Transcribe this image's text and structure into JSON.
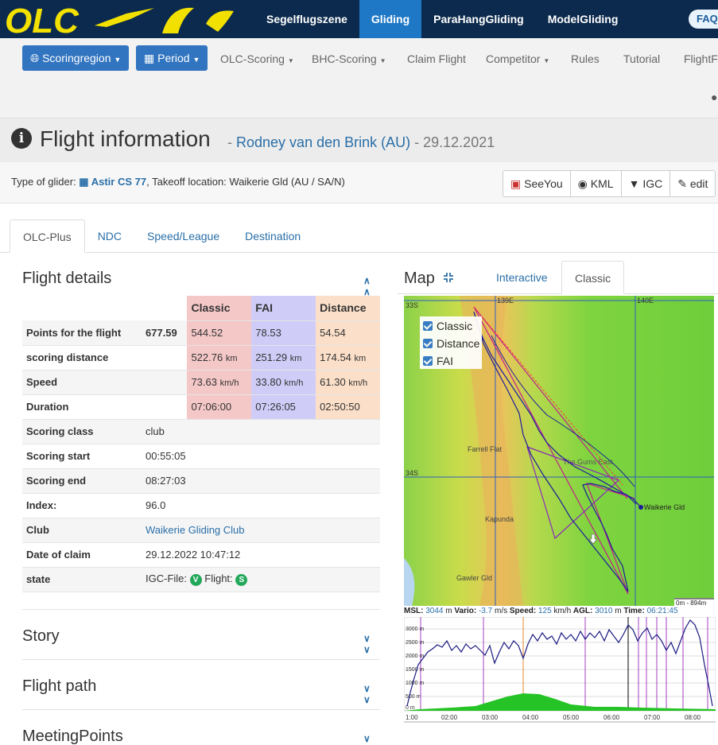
{
  "topnav": {
    "items": [
      "Segelflugszene",
      "Gliding",
      "ParaHangGliding",
      "ModelGliding"
    ],
    "active": "Gliding",
    "faq": "FAQ",
    "logo_text": "OLC"
  },
  "subnav": {
    "scoringregion": "Scoringregion",
    "period": "Period",
    "items": [
      "OLC-Scoring",
      "BHC-Scoring",
      "Claim Flight",
      "Competitor",
      "Rules",
      "Tutorial",
      "FlightF"
    ]
  },
  "header": {
    "title": "Flight information",
    "pilot": "Rodney van den Brink (AU)",
    "dash": "-",
    "date": "- 29.12.2021"
  },
  "glider": {
    "label": "Type of glider:",
    "type": "Astir CS 77",
    "takeoff": ", Takeoff location: Waikerie Gld (AU / SA/N)"
  },
  "export": [
    "SeeYou",
    "KML",
    "IGC",
    "edit"
  ],
  "tabs": [
    "OLC-Plus",
    "NDC",
    "Speed/League",
    "Destination"
  ],
  "flight_details": {
    "title": "Flight details",
    "headers": [
      "Classic",
      "FAI",
      "Distance"
    ],
    "points": {
      "label": "Points for the flight",
      "total": "677.59",
      "classic": "544.52",
      "fai": "78.53",
      "distance": "54.54"
    },
    "distance": {
      "label": "scoring distance",
      "classic": "522.76",
      "fai": "251.29",
      "distance": "174.54",
      "unit": "km"
    },
    "speed": {
      "label": "Speed",
      "classic": "73.63",
      "fai": "33.80",
      "distance": "61.30",
      "unit": "km/h"
    },
    "duration": {
      "label": "Duration",
      "classic": "07:06:00",
      "fai": "07:26:05",
      "distance": "02:50:50"
    },
    "scoring_class": {
      "label": "Scoring class",
      "value": "club"
    },
    "scoring_start": {
      "label": "Scoring start",
      "value": "00:55:05"
    },
    "scoring_end": {
      "label": "Scoring end",
      "value": "08:27:03"
    },
    "index": {
      "label": "Index:",
      "value": "96.0"
    },
    "club": {
      "label": "Club",
      "value": "Waikerie Gliding Club"
    },
    "date_claim": {
      "label": "Date of claim",
      "value": "29.12.2022 10:47:12"
    },
    "state": {
      "label": "state",
      "igc": "IGC-File:",
      "igc_badge": "V",
      "flight": "Flight:",
      "flight_badge": "S"
    }
  },
  "sections": [
    "Story",
    "Flight path",
    "MeetingPoints"
  ],
  "map": {
    "title": "Map",
    "tabs": [
      "Interactive",
      "Classic"
    ],
    "legend": [
      "Classic",
      "Distance",
      "FAI"
    ],
    "grid_labels": [
      "33S",
      "139E",
      "140E",
      "34S"
    ],
    "places": [
      "Farrell Flat",
      "The Gums East",
      "Waikerie Gld",
      "Kapunda",
      "Gawler Gld"
    ],
    "scale": "0m - 894m"
  },
  "barogram": {
    "msl_label": "MSL:",
    "msl": "3044",
    "msl_unit": "m",
    "vario_label": "Vario:",
    "vario": "-3.7",
    "vario_unit": "m/s",
    "speed_label": "Speed:",
    "speed": "125",
    "speed_unit": "km/h",
    "agl_label": "AGL:",
    "agl": "3010",
    "agl_unit": "m",
    "time_label": "Time:",
    "time": "06:21:45",
    "y_ticks": [
      "3000 m",
      "2500 m",
      "2000 m",
      "1500 m",
      "1000 m",
      "500 m",
      "0 m"
    ],
    "x_ticks": [
      "1:00",
      "02:00",
      "03:00",
      "04:00",
      "05:00",
      "06:00",
      "07:00",
      "08:00"
    ]
  },
  "colors": {
    "accent": "#1f78c6",
    "classic": "#f5c8c8",
    "fai": "#cfcdf8",
    "distance": "#fbdfc8"
  }
}
